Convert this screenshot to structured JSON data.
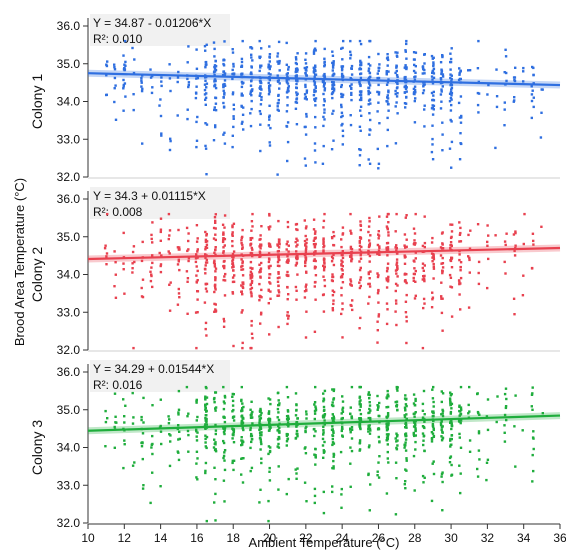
{
  "chart_data": {
    "type": "scatter",
    "xlabel": "Ambient Temperature (°C)",
    "ylabel": "Brood Area Temperature (°C)",
    "xlim": [
      10,
      36
    ],
    "ylim": [
      32.0,
      36.0
    ],
    "x_ticks": [
      10,
      12,
      14,
      16,
      18,
      20,
      22,
      24,
      26,
      28,
      30,
      32,
      34,
      36
    ],
    "y_ticks": [
      "32.0",
      "33.0",
      "34.0",
      "35.0",
      "36.0"
    ],
    "panels": [
      {
        "name": "Colony 1",
        "color": "#2f6fe0",
        "equation": "Y = 34.87 - 0.01206*X",
        "r2": "R²: 0.010",
        "fit": {
          "intercept": 34.87,
          "slope": -0.01206
        },
        "spread": 0.45,
        "low_tail": 0.22,
        "seed": 11
      },
      {
        "name": "Colony 2",
        "color": "#e8414f",
        "equation": "Y = 34.3 + 0.01115*X",
        "r2": "R²: 0.008",
        "fit": {
          "intercept": 34.3,
          "slope": 0.01115
        },
        "spread": 0.5,
        "low_tail": 0.3,
        "seed": 23
      },
      {
        "name": "Colony 3",
        "color": "#1fad3c",
        "equation": "Y = 34.29 + 0.01544*X",
        "r2": "R²: 0.016",
        "fit": {
          "intercept": 34.29,
          "slope": 0.01544
        },
        "spread": 0.45,
        "low_tail": 0.18,
        "seed": 37
      }
    ]
  }
}
